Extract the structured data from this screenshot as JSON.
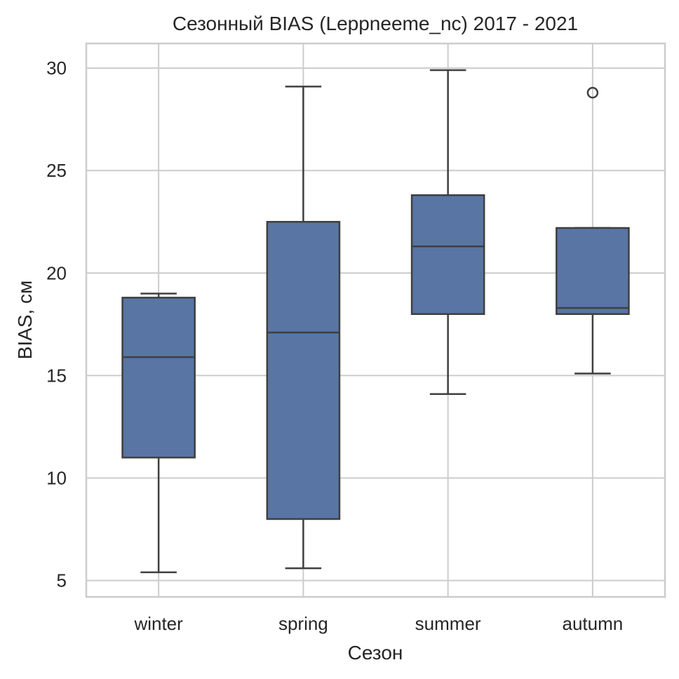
{
  "chart_data": {
    "type": "box",
    "title": "Сезонный BIAS (Leppneeme_nc) 2017 - 2021",
    "xlabel": "Сезон",
    "ylabel": "BIAS, см",
    "ylim": [
      4.2,
      31.2
    ],
    "yticks": [
      5,
      10,
      15,
      20,
      25,
      30
    ],
    "grid": true,
    "box_color": "#5875a4",
    "line_color": "#3f3f3f",
    "grid_color": "#cccccc",
    "categories": [
      "winter",
      "spring",
      "summer",
      "autumn"
    ],
    "boxes": [
      {
        "category": "winter",
        "whisker_low": 5.4,
        "q1": 11.0,
        "median": 15.9,
        "q3": 18.8,
        "whisker_high": 19.0,
        "outliers": []
      },
      {
        "category": "spring",
        "whisker_low": 5.6,
        "q1": 8.0,
        "median": 17.1,
        "q3": 22.5,
        "whisker_high": 29.1,
        "outliers": []
      },
      {
        "category": "summer",
        "whisker_low": 14.1,
        "q1": 18.0,
        "median": 21.3,
        "q3": 23.8,
        "whisker_high": 29.9,
        "outliers": []
      },
      {
        "category": "autumn",
        "whisker_low": 15.1,
        "q1": 18.0,
        "median": 18.3,
        "q3": 22.2,
        "whisker_high": 22.2,
        "outliers": [
          28.8
        ]
      }
    ]
  }
}
